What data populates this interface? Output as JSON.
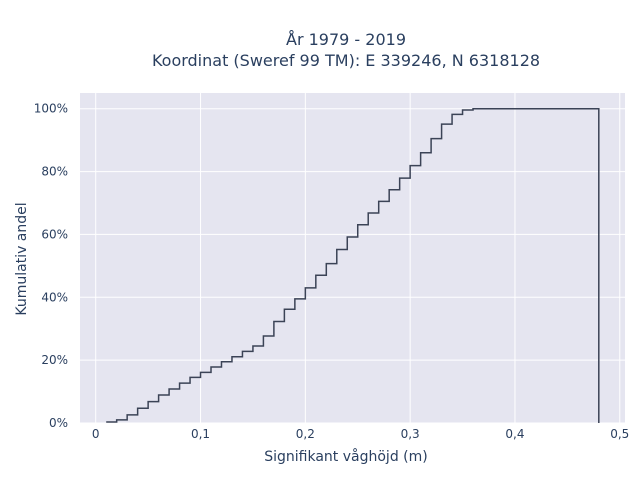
{
  "chart_data": {
    "type": "line",
    "line_shape": "step",
    "title": "År 1979 - 2019",
    "subtitle": "Koordinat (Sweref 99 TM): E 339246, N 6318128",
    "xlabel": "Signifikant våghöjd (m)",
    "ylabel": "Kumulativ andel",
    "xlim": [
      -0.015,
      0.505
    ],
    "ylim": [
      0,
      1.05
    ],
    "x_ticks": [
      {
        "value": 0,
        "label": "0"
      },
      {
        "value": 0.1,
        "label": "0,1"
      },
      {
        "value": 0.2,
        "label": "0,2"
      },
      {
        "value": 0.3,
        "label": "0,3"
      },
      {
        "value": 0.4,
        "label": "0,4"
      },
      {
        "value": 0.5,
        "label": "0,5"
      }
    ],
    "y_ticks": [
      {
        "value": 0,
        "label": "0%"
      },
      {
        "value": 0.2,
        "label": "20%"
      },
      {
        "value": 0.4,
        "label": "40%"
      },
      {
        "value": 0.6,
        "label": "60%"
      },
      {
        "value": 0.8,
        "label": "80%"
      },
      {
        "value": 1.0,
        "label": "100%"
      }
    ],
    "grid": true,
    "background": "#e5e5f0",
    "line_color": "#3b4356",
    "series": [
      {
        "x": [
          0.01,
          0.02,
          0.03,
          0.04,
          0.05,
          0.06,
          0.07,
          0.08,
          0.09,
          0.1,
          0.11,
          0.12,
          0.13,
          0.14,
          0.15,
          0.16,
          0.17,
          0.18,
          0.19,
          0.2,
          0.21,
          0.22,
          0.23,
          0.24,
          0.25,
          0.26,
          0.27,
          0.28,
          0.29,
          0.3,
          0.31,
          0.32,
          0.33,
          0.34,
          0.35,
          0.36,
          0.37,
          0.48,
          0.48
        ],
        "y": [
          0.003,
          0.01,
          0.026,
          0.047,
          0.068,
          0.089,
          0.108,
          0.127,
          0.145,
          0.161,
          0.178,
          0.195,
          0.211,
          0.228,
          0.245,
          0.277,
          0.323,
          0.362,
          0.395,
          0.43,
          0.47,
          0.507,
          0.552,
          0.592,
          0.631,
          0.668,
          0.705,
          0.742,
          0.779,
          0.819,
          0.86,
          0.905,
          0.951,
          0.982,
          0.996,
          1.0,
          1.0,
          1.0,
          0.0
        ]
      }
    ]
  }
}
